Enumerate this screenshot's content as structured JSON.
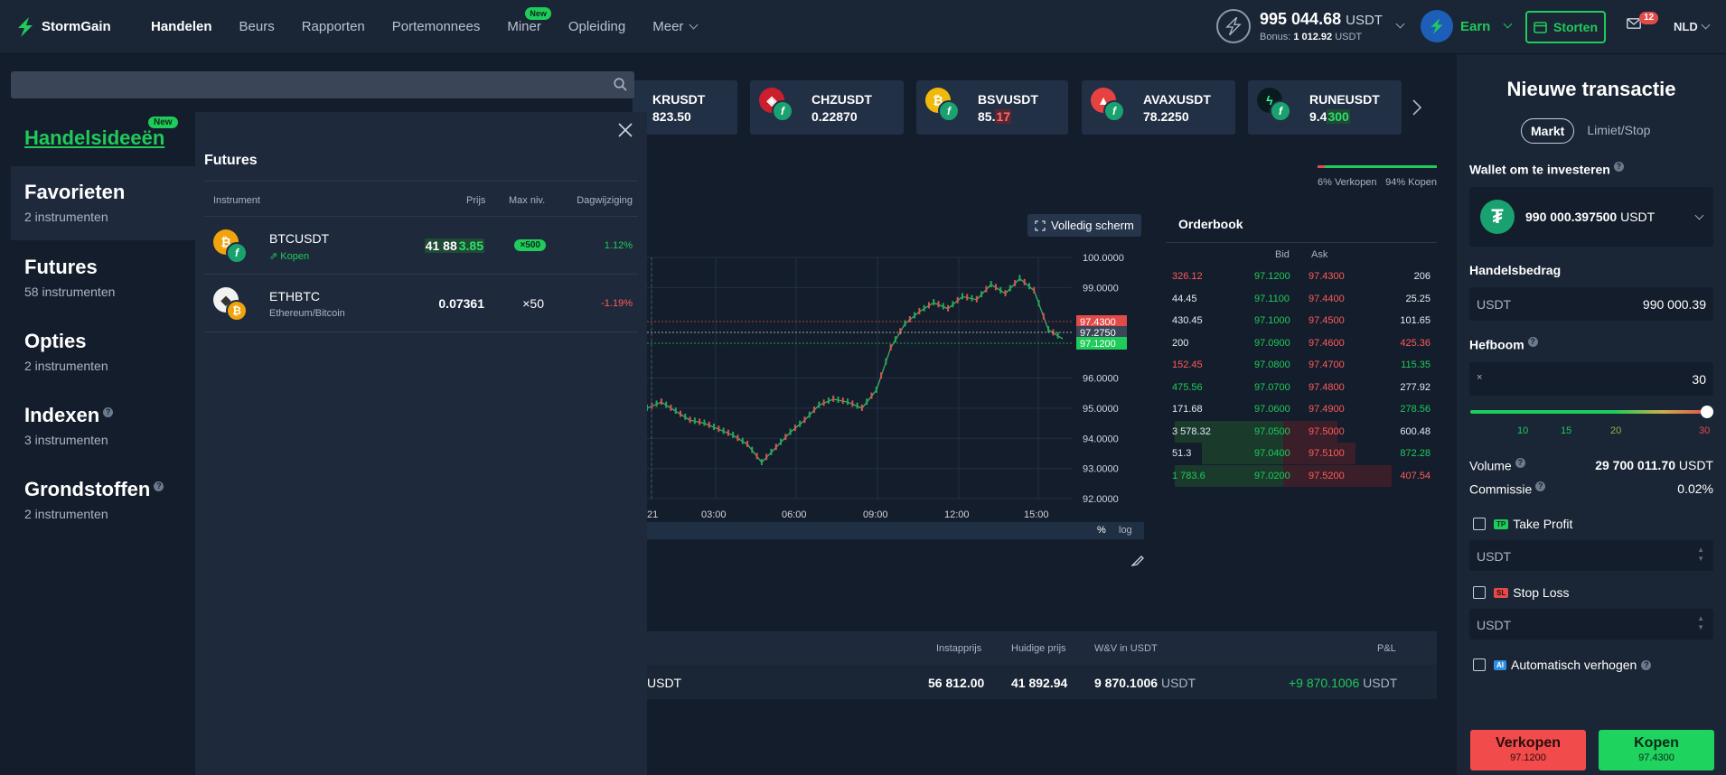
{
  "app": {
    "name": "StormGain"
  },
  "nav": {
    "items": [
      {
        "label": "Handelen",
        "active": true
      },
      {
        "label": "Beurs"
      },
      {
        "label": "Rapporten"
      },
      {
        "label": "Portemonnees"
      },
      {
        "label": "Miner",
        "badge": "New"
      },
      {
        "label": "Opleiding"
      },
      {
        "label": "Meer"
      }
    ]
  },
  "account": {
    "balance_amount": "995 044.68",
    "balance_currency": "USDT",
    "bonus_label": "Bonus:",
    "bonus_amount": "1 012.92",
    "bonus_currency": "USDT",
    "earn_label": "Earn",
    "deposit_label": "Storten",
    "mail_count": "12",
    "language": "NLD"
  },
  "tickers": [
    {
      "name": "KRUSDT",
      "price": "823.50",
      "coin_color": "#2f3a4d"
    },
    {
      "name": "CHZUSDT",
      "price": "0.22870",
      "coin_color": "#cc1f2e"
    },
    {
      "name": "BSVUSDT",
      "price_plain": "85.",
      "price_highlight": "17",
      "highlight": "red",
      "coin_color": "#f0b90b"
    },
    {
      "name": "AVAXUSDT",
      "price": "78.2250",
      "coin_color": "#e84142"
    },
    {
      "name": "RUNEUSDT",
      "price_plain": "9.4",
      "price_highlight": "300",
      "highlight": "green",
      "coin_color": "#0b1a1e"
    }
  ],
  "sidebar": {
    "search_placeholder": "",
    "ideas_label": "Handelsideeën",
    "ideas_badge": "New",
    "categories": [
      {
        "title": "Favorieten",
        "sub": "2 instrumenten",
        "active": true
      },
      {
        "title": "Futures",
        "sub": "58 instrumenten"
      },
      {
        "title": "Opties",
        "sub": "2 instrumenten"
      },
      {
        "title": "Indexen",
        "sub": "3 instrumenten",
        "help": "?"
      },
      {
        "title": "Grondstoffen",
        "sub": "2 instrumenten",
        "help": "?"
      }
    ]
  },
  "futures_panel": {
    "title": "Futures",
    "columns": {
      "instrument": "Instrument",
      "price": "Prijs",
      "max_lev": "Max niv.",
      "change": "Dagwijziging"
    },
    "rows": [
      {
        "name": "BTCUSDT",
        "sub": "Kopen",
        "price_plain": "41 88",
        "price_highlight": "3.85",
        "leverage": "×500",
        "change": "1.12%"
      },
      {
        "name": "ETHBTC",
        "sub": "Ethereum/Bitcoin",
        "price": "0.07361",
        "leverage": "×50",
        "change": "-1.19%"
      }
    ]
  },
  "sentiment": {
    "sell_label": "6% Verkopen",
    "buy_label": "94% Kopen",
    "sell_pct": 6,
    "buy_pct": 94
  },
  "chart_toolbar": {
    "fullscreen_label": "Volledig scherm",
    "pct_label": "%",
    "log_label": "log"
  },
  "chart_data": {
    "type": "line",
    "x_ticks": [
      "21",
      "03:00",
      "06:00",
      "09:00",
      "12:00",
      "15:00"
    ],
    "y_ticks": [
      "100.0000",
      "99.0000",
      "96.0000",
      "95.0000",
      "94.0000",
      "93.0000",
      "92.0000"
    ],
    "price_tags": {
      "ask": "97.4300",
      "last": "97.2750",
      "bid": "97.1200"
    },
    "series": [
      {
        "values": [
          95.0,
          95.2,
          94.9,
          94.6,
          94.5,
          94.3,
          94.1,
          93.8,
          93.2,
          93.7,
          94.2,
          94.6,
          95.1,
          95.3,
          95.2,
          95.0,
          95.6,
          97.0,
          97.8,
          98.2,
          98.5,
          98.3,
          98.7,
          98.6,
          99.1,
          98.8,
          99.3,
          98.9,
          97.6,
          97.3
        ]
      }
    ]
  },
  "orderbook": {
    "title": "Orderbook",
    "bid_label": "Bid",
    "ask_label": "Ask",
    "rows": [
      {
        "bid_qty": "326.12",
        "bid_qty_color": "neg",
        "bid": "97.1200",
        "ask": "97.4300",
        "ask_qty": "206",
        "ask_qty_color": "plain"
      },
      {
        "bid_qty": "44.45",
        "bid_qty_color": "plain",
        "bid": "97.1100",
        "ask": "97.4400",
        "ask_qty": "25.25",
        "ask_qty_color": "plain"
      },
      {
        "bid_qty": "430.45",
        "bid_qty_color": "plain",
        "bid": "97.1000",
        "ask": "97.4500",
        "ask_qty": "101.65",
        "ask_qty_color": "plain"
      },
      {
        "bid_qty": "200",
        "bid_qty_color": "plain",
        "bid": "97.0900",
        "ask": "97.4600",
        "ask_qty": "425.36",
        "ask_qty_color": "neg"
      },
      {
        "bid_qty": "152.45",
        "bid_qty_color": "neg",
        "bid": "97.0800",
        "ask": "97.4700",
        "ask_qty": "115.35",
        "ask_qty_color": "pos"
      },
      {
        "bid_qty": "475.56",
        "bid_qty_color": "pos",
        "bid": "97.0700",
        "ask": "97.4800",
        "ask_qty": "277.92",
        "ask_qty_color": "plain"
      },
      {
        "bid_qty": "171.68",
        "bid_qty_color": "plain",
        "bid": "97.0600",
        "ask": "97.4900",
        "ask_qty": "278.56",
        "ask_qty_color": "pos"
      },
      {
        "bid_qty": "3 578.32",
        "bid_qty_color": "plain",
        "bid": "97.0500",
        "ask": "97.5000",
        "ask_qty": "600.48",
        "ask_qty_color": "plain"
      },
      {
        "bid_qty": "51.3",
        "bid_qty_color": "plain",
        "bid": "97.0400",
        "ask": "97.5100",
        "ask_qty": "872.28",
        "ask_qty_color": "pos"
      },
      {
        "bid_qty": "1 783.6",
        "bid_qty_color": "pos",
        "bid": "97.0200",
        "ask": "97.5200",
        "ask_qty": "407.54",
        "ask_qty_color": "neg"
      }
    ]
  },
  "positions": {
    "columns": {
      "entry": "Instapprijs",
      "current": "Huidige prijs",
      "pnl_usdt": "W&V in USDT",
      "pnl": "P&L"
    },
    "row": {
      "left_text": "USDT",
      "entry": "56 812.00",
      "current": "41 892.94",
      "pnl_usdt": "9 870.1006",
      "pnl_usdt_unit": "USDT",
      "pnl": "+9 870.1006",
      "pnl_unit": "USDT"
    }
  },
  "transaction": {
    "title": "Nieuwe transactie",
    "tabs": [
      {
        "label": "Markt",
        "active": true
      },
      {
        "label": "Limiet/Stop"
      }
    ],
    "wallet_label": "Wallet om te investeren",
    "wallet_amount": "990 000.397500",
    "wallet_currency": "USDT",
    "amount_label": "Handelsbedrag",
    "amount_unit": "USDT",
    "amount_value": "990 000.39",
    "leverage_label": "Hefboom",
    "leverage_prefix": "×",
    "leverage_value": "30",
    "leverage_ticks": [
      "10",
      "15",
      "20",
      "30"
    ],
    "volume_label": "Volume",
    "volume_value": "29 700 011.70",
    "volume_unit": "USDT",
    "commission_label": "Commissie",
    "commission_value": "0.02%",
    "take_profit_label": "Take Profit",
    "take_profit_tag": "TP",
    "take_profit_unit": "USDT",
    "stop_loss_label": "Stop Loss",
    "stop_loss_tag": "SL",
    "stop_loss_unit": "USDT",
    "auto_label": "Automatisch verhogen",
    "auto_tag": "AI",
    "sell_label": "Verkopen",
    "sell_price": "97.1200",
    "buy_label": "Kopen",
    "buy_price": "97.4300"
  },
  "colors": {
    "accent": "#1fcb5a",
    "danger": "#f24b4b",
    "panel": "#1e2a3c",
    "bg": "#141d2b"
  }
}
